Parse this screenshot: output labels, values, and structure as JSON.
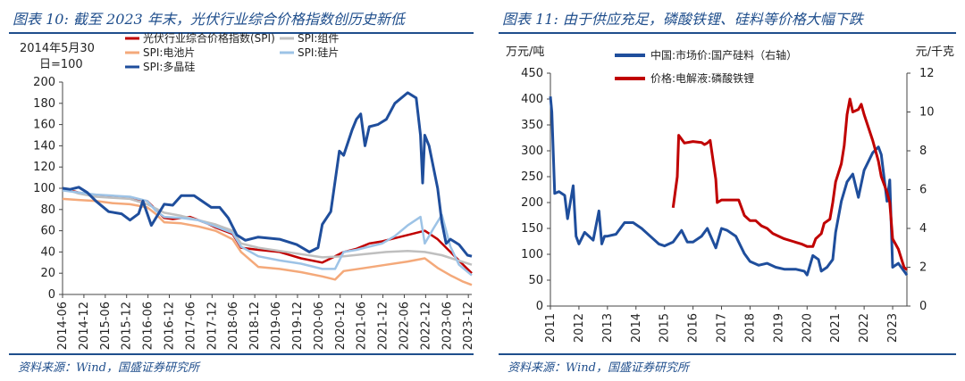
{
  "left_panel": {
    "title": "图表 10: 截至 2023 年末，光伏行业综合价格指数创历史新低",
    "source": "资料来源：Wind，国盛证券研究所"
  },
  "right_panel": {
    "title": "图表 11: 由于供应充足，磷酸铁锂、硅料等价格大幅下跌",
    "source": "资料来源：Wind，国盛证券研究所"
  },
  "chart_data": [
    {
      "type": "line",
      "unit_lines": [
        "2014年5月30",
        "日=100"
      ],
      "ylim": [
        0,
        200
      ],
      "yticks": [
        0,
        20,
        40,
        60,
        80,
        100,
        120,
        140,
        160,
        180,
        200
      ],
      "xlim": [
        2014.42,
        2024.0
      ],
      "xtick_labels": [
        "2014-06",
        "2014-12",
        "2015-06",
        "2015-12",
        "2016-06",
        "2016-12",
        "2017-06",
        "2017-12",
        "2018-06",
        "2018-12",
        "2019-06",
        "2019-12",
        "2020-06",
        "2020-12",
        "2021-06",
        "2021-12",
        "2022-06",
        "2022-12",
        "2023-06",
        "2023-12"
      ],
      "xtick_positions": [
        2014.42,
        2014.92,
        2015.42,
        2015.92,
        2016.42,
        2016.92,
        2017.42,
        2017.92,
        2018.42,
        2018.92,
        2019.42,
        2019.92,
        2020.42,
        2020.92,
        2021.42,
        2021.92,
        2022.42,
        2022.92,
        2023.42,
        2023.92
      ],
      "grid": false,
      "legend_position": "top",
      "series": [
        {
          "name": "光伏行业综合价格指数(SPI)",
          "color": "#c00000",
          "x": [
            2014.42,
            2014.8,
            2015.2,
            2015.6,
            2016.0,
            2016.4,
            2016.6,
            2016.8,
            2017.0,
            2017.4,
            2017.8,
            2018.0,
            2018.4,
            2018.6,
            2019.0,
            2019.5,
            2020.0,
            2020.5,
            2020.8,
            2021.0,
            2021.3,
            2021.6,
            2021.9,
            2022.2,
            2022.6,
            2022.9,
            2023.2,
            2023.5,
            2023.8,
            2024.0
          ],
          "y": [
            100,
            96,
            93,
            92,
            91,
            88,
            80,
            72,
            71,
            73,
            67,
            63,
            57,
            44,
            42,
            40,
            34,
            30,
            36,
            40,
            43,
            48,
            50,
            53,
            57,
            60,
            52,
            40,
            28,
            20
          ]
        },
        {
          "name": "SPI:组件",
          "color": "#bfbfbf",
          "x": [
            2014.42,
            2014.8,
            2015.2,
            2015.6,
            2016.0,
            2016.4,
            2016.8,
            2017.2,
            2017.6,
            2018.0,
            2018.4,
            2018.6,
            2019.0,
            2019.5,
            2020.0,
            2020.5,
            2021.0,
            2021.5,
            2022.0,
            2022.5,
            2022.9,
            2023.3,
            2023.6,
            2024.0
          ],
          "y": [
            100,
            95,
            92,
            91,
            90,
            85,
            77,
            74,
            70,
            66,
            60,
            48,
            44,
            41,
            38,
            35,
            36,
            38,
            40,
            41,
            40,
            37,
            33,
            28
          ]
        },
        {
          "name": "SPI:电池片",
          "color": "#f4a97a",
          "x": [
            2014.42,
            2014.8,
            2015.2,
            2015.6,
            2016.0,
            2016.4,
            2016.6,
            2016.8,
            2017.2,
            2017.6,
            2018.0,
            2018.4,
            2018.6,
            2019.0,
            2019.5,
            2020.0,
            2020.5,
            2020.8,
            2021.0,
            2021.5,
            2022.0,
            2022.5,
            2022.9,
            2023.2,
            2023.5,
            2023.8,
            2024.0
          ],
          "y": [
            90,
            89,
            88,
            86,
            85,
            82,
            76,
            68,
            67,
            64,
            60,
            52,
            40,
            26,
            24,
            21,
            17,
            14,
            22,
            25,
            28,
            31,
            34,
            25,
            18,
            12,
            9
          ]
        },
        {
          "name": "SPI:硅片",
          "color": "#9dc3e6",
          "x": [
            2014.42,
            2014.8,
            2015.2,
            2015.6,
            2016.0,
            2016.4,
            2016.6,
            2016.8,
            2017.2,
            2017.6,
            2018.0,
            2018.4,
            2018.6,
            2019.0,
            2019.5,
            2020.0,
            2020.5,
            2020.8,
            2021.0,
            2021.3,
            2021.6,
            2021.9,
            2022.2,
            2022.5,
            2022.8,
            2022.9,
            2023.1,
            2023.3,
            2023.5,
            2023.7,
            2024.0
          ],
          "y": [
            98,
            96,
            94,
            93,
            92,
            88,
            79,
            73,
            72,
            70,
            64,
            58,
            45,
            36,
            32,
            29,
            24,
            24,
            40,
            42,
            45,
            48,
            55,
            65,
            73,
            48,
            62,
            75,
            45,
            28,
            18
          ]
        },
        {
          "name": "SPI:多晶硅",
          "color": "#1f4e9c",
          "x": [
            2014.42,
            2014.6,
            2014.8,
            2015.0,
            2015.2,
            2015.5,
            2015.8,
            2016.0,
            2016.2,
            2016.3,
            2016.5,
            2016.8,
            2017.0,
            2017.2,
            2017.5,
            2017.9,
            2018.1,
            2018.3,
            2018.5,
            2018.7,
            2019.0,
            2019.5,
            2019.9,
            2020.2,
            2020.4,
            2020.5,
            2020.7,
            2020.9,
            2021.0,
            2021.2,
            2021.3,
            2021.4,
            2021.5,
            2021.6,
            2021.8,
            2022.0,
            2022.2,
            2022.5,
            2022.7,
            2022.8,
            2022.85,
            2022.9,
            2023.0,
            2023.2,
            2023.3,
            2023.4,
            2023.5,
            2023.7,
            2023.9,
            2024.0
          ],
          "y": [
            100,
            99,
            101,
            96,
            88,
            78,
            76,
            70,
            76,
            88,
            65,
            85,
            84,
            93,
            93,
            82,
            82,
            72,
            56,
            51,
            54,
            52,
            47,
            40,
            44,
            66,
            78,
            135,
            131,
            155,
            165,
            170,
            140,
            158,
            160,
            165,
            180,
            190,
            185,
            150,
            105,
            150,
            140,
            100,
            68,
            48,
            52,
            47,
            37,
            36
          ]
        }
      ]
    },
    {
      "type": "line",
      "left_unit": "万元/吨",
      "right_unit": "元/千克",
      "ylim_left": [
        0,
        450
      ],
      "yticks_left": [
        0,
        50,
        100,
        150,
        200,
        250,
        300,
        350,
        400,
        450
      ],
      "ylim_right": [
        0,
        12
      ],
      "yticks_right": [
        0,
        2,
        4,
        6,
        8,
        10,
        12
      ],
      "xlim": [
        2011.0,
        2023.5
      ],
      "xtick_labels": [
        "2011",
        "2012",
        "2013",
        "2014",
        "2015",
        "2016",
        "2017",
        "2018",
        "2019",
        "2020",
        "2021",
        "2022",
        "2023"
      ],
      "xtick_positions": [
        2011,
        2012,
        2013,
        2014,
        2015,
        2016,
        2017,
        2018,
        2019,
        2020,
        2021,
        2022,
        2023
      ],
      "grid": false,
      "legend_position": "top",
      "series": [
        {
          "name": "中国:市场价:国产硅料（右轴）",
          "color": "#1f4e9c",
          "axis": "right",
          "x": [
            2011.0,
            2011.05,
            2011.15,
            2011.3,
            2011.5,
            2011.6,
            2011.8,
            2011.9,
            2012.0,
            2012.2,
            2012.5,
            2012.7,
            2012.8,
            2012.9,
            2013.0,
            2013.3,
            2013.6,
            2013.9,
            2014.2,
            2014.5,
            2014.8,
            2015.0,
            2015.3,
            2015.6,
            2015.8,
            2016.0,
            2016.3,
            2016.5,
            2016.8,
            2017.0,
            2017.2,
            2017.5,
            2017.8,
            2018.0,
            2018.3,
            2018.6,
            2018.9,
            2019.2,
            2019.6,
            2019.9,
            2020.0,
            2020.2,
            2020.4,
            2020.5,
            2020.7,
            2020.9,
            2021.0,
            2021.2,
            2021.4,
            2021.6,
            2021.8,
            2022.0,
            2022.3,
            2022.5,
            2022.6,
            2022.8,
            2022.9,
            2023.0,
            2023.2,
            2023.4,
            2023.5
          ],
          "y": [
            10.8,
            10.0,
            5.8,
            5.9,
            5.7,
            4.5,
            6.2,
            3.6,
            3.2,
            3.8,
            3.4,
            4.9,
            3.2,
            3.6,
            3.6,
            3.7,
            4.3,
            4.3,
            4.0,
            3.6,
            3.2,
            3.1,
            3.3,
            3.9,
            3.3,
            3.3,
            3.6,
            4.0,
            3.0,
            4.0,
            3.9,
            3.6,
            2.7,
            2.3,
            2.1,
            2.2,
            2.0,
            1.9,
            1.9,
            1.8,
            1.6,
            2.6,
            2.4,
            1.8,
            2.0,
            2.4,
            3.8,
            5.4,
            6.4,
            6.8,
            5.6,
            7.0,
            7.9,
            8.2,
            7.8,
            5.4,
            6.5,
            2.0,
            2.2,
            1.8,
            1.6
          ]
        },
        {
          "name": "价格:电解液:磷酸铁锂",
          "color": "#c00000",
          "axis": "left",
          "x": [
            2015.3,
            2015.45,
            2015.5,
            2015.7,
            2016.0,
            2016.3,
            2016.4,
            2016.5,
            2016.6,
            2016.8,
            2016.85,
            2017.0,
            2017.3,
            2017.5,
            2017.6,
            2017.8,
            2018.0,
            2018.2,
            2018.4,
            2018.6,
            2018.8,
            2019.0,
            2019.2,
            2019.5,
            2019.8,
            2020.0,
            2020.2,
            2020.3,
            2020.5,
            2020.6,
            2020.8,
            2020.9,
            2021.0,
            2021.2,
            2021.3,
            2021.4,
            2021.5,
            2021.6,
            2021.8,
            2021.9,
            2022.0,
            2022.3,
            2022.5,
            2022.6,
            2022.8,
            2022.9,
            2023.0,
            2023.2,
            2023.4,
            2023.5
          ],
          "y": [
            190,
            250,
            330,
            315,
            318,
            316,
            312,
            315,
            320,
            245,
            200,
            205,
            205,
            205,
            205,
            175,
            165,
            165,
            155,
            150,
            140,
            135,
            130,
            125,
            120,
            115,
            115,
            130,
            140,
            160,
            168,
            200,
            240,
            275,
            310,
            370,
            400,
            375,
            380,
            390,
            370,
            320,
            280,
            250,
            220,
            200,
            130,
            110,
            75,
            70
          ]
        }
      ]
    }
  ]
}
